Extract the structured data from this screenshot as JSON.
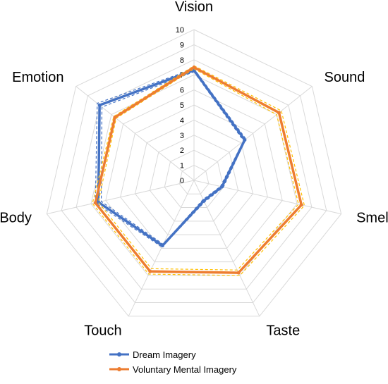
{
  "chart_data": {
    "type": "radar",
    "axes": [
      "Vision",
      "Sound",
      "Smell",
      "Taste",
      "Touch",
      "Body",
      "Emotion"
    ],
    "r_ticks": [
      "0",
      "1",
      "2",
      "3",
      "4",
      "5",
      "6",
      "7",
      "8",
      "9",
      "10"
    ],
    "r_range": [
      0,
      10
    ],
    "grid": true,
    "legend_position": "bottom",
    "series": [
      {
        "name": "Dream Imagery",
        "color": "#4472C4",
        "values": [
          7.3,
          4.3,
          1.9,
          1.5,
          4.8,
          6.5,
          8.0
        ],
        "upper": [
          7.4,
          4.4,
          2.0,
          1.6,
          4.9,
          6.7,
          8.2
        ],
        "lower": [
          7.2,
          4.2,
          1.8,
          1.4,
          4.7,
          6.3,
          7.8
        ]
      },
      {
        "name": "Voluntary Mental Imagery",
        "color": "#ED7D31",
        "values": [
          7.5,
          7.2,
          7.3,
          6.8,
          6.7,
          6.7,
          6.7
        ],
        "upper": [
          7.6,
          7.4,
          7.5,
          7.0,
          6.9,
          6.9,
          6.8
        ],
        "lower": [
          7.4,
          7.0,
          7.1,
          6.6,
          6.5,
          6.5,
          6.6
        ],
        "band_color": "#FFC000"
      }
    ]
  }
}
